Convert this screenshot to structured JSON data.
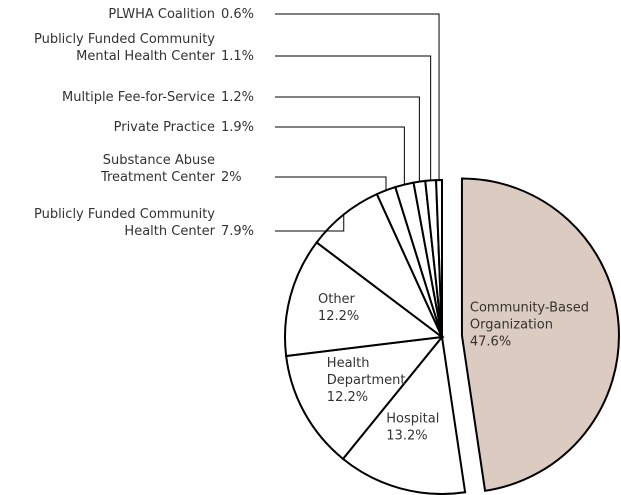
{
  "chart_data": {
    "type": "pie",
    "categories": [
      "Community-Based\nOrganization",
      "Hospital",
      "Health\nDepartment",
      "Other",
      "Publicly Funded Community\nHealth Center",
      "Substance Abuse\nTreatment Center",
      "Private Practice",
      "Multiple Fee-for-Service",
      "Publicly Funded Community\nMental Health Center",
      "PLWHA Coalition"
    ],
    "values": [
      47.6,
      13.2,
      12.2,
      12.2,
      7.9,
      2,
      1.9,
      1.2,
      1.1,
      0.6
    ],
    "value_labels": [
      "47.6%",
      "13.2%",
      "12.2%",
      "12.2%",
      "7.9%",
      "2%",
      "1.9%",
      "1.2%",
      "1.1%",
      "0.6%"
    ],
    "colors": [
      "#dccbc0",
      "#ffffff",
      "#ffffff",
      "#ffffff",
      "#ffffff",
      "#ffffff",
      "#ffffff",
      "#ffffff",
      "#ffffff",
      "#ffffff"
    ],
    "exploded": [
      0
    ]
  }
}
